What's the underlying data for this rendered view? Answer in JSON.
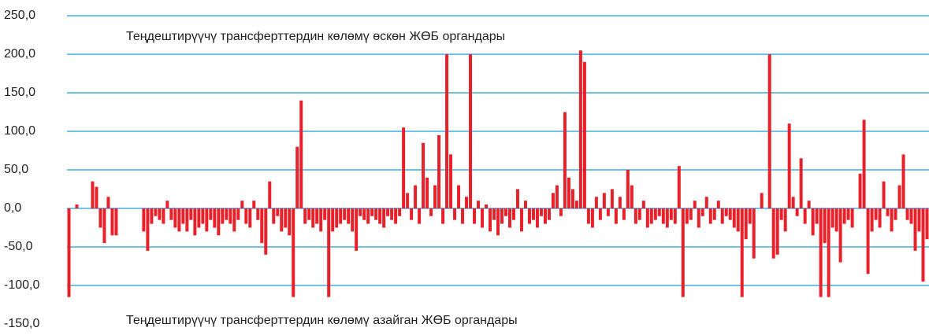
{
  "chart_data": {
    "type": "bar",
    "annotations": [
      "Теңдештирүүчү трансферттердин көлөмү өскөн ЖӨБ органдары",
      "Теңдештирүүчү трансферттердин көлөмү азайган ЖӨБ органдары"
    ],
    "color": "#e8202a",
    "grid": true,
    "ylim": [
      -150,
      250
    ],
    "yticks": [
      {
        "value": 250,
        "label": "250,0"
      },
      {
        "value": 200,
        "label": "200,0"
      },
      {
        "value": 150,
        "label": "150,0"
      },
      {
        "value": 100,
        "label": "100,0"
      },
      {
        "value": 50,
        "label": "50,0"
      },
      {
        "value": 0,
        "label": "0,0"
      },
      {
        "value": -50,
        "label": "-50,0"
      },
      {
        "value": -100,
        "label": "-100,0"
      },
      {
        "value": -150,
        "label": "-150,0"
      }
    ],
    "values": [
      -115,
      0,
      5,
      0,
      0,
      0,
      35,
      28,
      -25,
      -45,
      15,
      -35,
      -35,
      0,
      0,
      0,
      0,
      0,
      0,
      -30,
      -55,
      -20,
      -10,
      -15,
      -20,
      10,
      -15,
      -25,
      -30,
      -20,
      -30,
      -15,
      -35,
      -25,
      -20,
      -30,
      -15,
      -25,
      -35,
      -20,
      -15,
      -20,
      -30,
      -15,
      10,
      -20,
      -25,
      10,
      -15,
      -45,
      -60,
      35,
      -20,
      -10,
      -30,
      -25,
      -35,
      -115,
      80,
      140,
      -20,
      -15,
      -25,
      -20,
      -30,
      -15,
      -115,
      -30,
      -25,
      -20,
      -15,
      -20,
      -30,
      -55,
      -10,
      -15,
      -20,
      -10,
      -15,
      -20,
      -25,
      -10,
      -15,
      -20,
      -10,
      105,
      20,
      -15,
      30,
      -20,
      85,
      40,
      -10,
      30,
      95,
      -20,
      200,
      70,
      -15,
      30,
      -20,
      15,
      200,
      -20,
      10,
      -25,
      5,
      -30,
      -15,
      -35,
      -20,
      -10,
      -25,
      -15,
      25,
      -30,
      10,
      -20,
      -15,
      -25,
      -10,
      -20,
      -15,
      20,
      30,
      -10,
      125,
      40,
      25,
      10,
      205,
      190,
      -20,
      -25,
      15,
      -15,
      20,
      -10,
      25,
      -20,
      15,
      -15,
      50,
      30,
      -20,
      -15,
      10,
      -25,
      -20,
      -15,
      -10,
      -20,
      -25,
      -15,
      -20,
      55,
      -115,
      -20,
      -15,
      10,
      -25,
      -10,
      15,
      -20,
      -15,
      10,
      -20,
      -10,
      -15,
      -25,
      -30,
      -115,
      -40,
      -20,
      -65,
      0,
      20,
      0,
      200,
      -65,
      -60,
      -15,
      -30,
      110,
      15,
      -10,
      65,
      -20,
      10,
      -35,
      -20,
      -115,
      -45,
      -115,
      -25,
      -30,
      -70,
      -20,
      -15,
      -25,
      0,
      45,
      115,
      -85,
      -30,
      -15,
      -25,
      35,
      -10,
      -30,
      -15,
      30,
      70,
      -15,
      -20,
      -55,
      -30,
      -95,
      -40
    ]
  }
}
